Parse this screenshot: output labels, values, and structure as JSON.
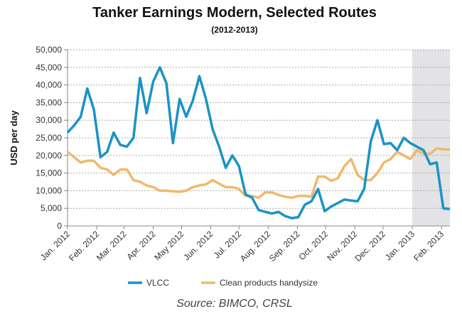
{
  "chart_data": {
    "type": "line",
    "title": "Tanker Earnings Modern, Selected Routes",
    "subtitle": "(2012-2013)",
    "y_label": "USD per day",
    "source": "Source: BIMCO, CRSL",
    "x": [
      0,
      1,
      2,
      3,
      4,
      5,
      6,
      7,
      8,
      9,
      10,
      11,
      12,
      13,
      14,
      15,
      16,
      17,
      18,
      19,
      20,
      21,
      22,
      23,
      24,
      25,
      26,
      27,
      28,
      29,
      30,
      31,
      32,
      33,
      34,
      35,
      36,
      37,
      38,
      39,
      40,
      41,
      42,
      43,
      44,
      45,
      46,
      47,
      48,
      49,
      50,
      51,
      52,
      53,
      54,
      55,
      56,
      57,
      58
    ],
    "xlim": [
      0,
      58
    ],
    "xticks": [
      {
        "value": 0,
        "label": "Jan. 2012"
      },
      {
        "value": 4.43,
        "label": "Feb. 2012"
      },
      {
        "value": 8.57,
        "label": "Mar. 2012"
      },
      {
        "value": 13,
        "label": "Apr. 2012"
      },
      {
        "value": 17.29,
        "label": "May 2012"
      },
      {
        "value": 21.71,
        "label": "Jun. 2012"
      },
      {
        "value": 26,
        "label": "Jul. 2012"
      },
      {
        "value": 30.43,
        "label": "Aug. 2012"
      },
      {
        "value": 34.86,
        "label": "Sep. 2012"
      },
      {
        "value": 39.14,
        "label": "Oct. 2012"
      },
      {
        "value": 43.57,
        "label": "Nov. 2012"
      },
      {
        "value": 47.86,
        "label": "Dec. 2012"
      },
      {
        "value": 52.29,
        "label": "Jan. 2013"
      },
      {
        "value": 56.71,
        "label": "Feb. 2013"
      }
    ],
    "highlight_xrange": [
      52.29,
      58
    ],
    "ylim": [
      0,
      50000
    ],
    "yticks": [
      0,
      {
        "value": 5000,
        "label": "5,000"
      },
      {
        "value": 10000,
        "label": "10,000"
      },
      {
        "value": 15000,
        "label": "15,000"
      },
      {
        "value": 20000,
        "label": "20,000"
      },
      {
        "value": 25000,
        "label": "25,000"
      },
      {
        "value": 30000,
        "label": "30,000"
      },
      {
        "value": 35000,
        "label": "35,000"
      },
      {
        "value": 40000,
        "label": "40,000"
      },
      {
        "value": 45000,
        "label": "45,000"
      },
      {
        "value": 50000,
        "label": "50,000"
      }
    ],
    "grid": true,
    "legend": "bottom",
    "series": [
      {
        "name": "VLCC",
        "color": "#1a93c4",
        "values": [
          26500,
          28500,
          31000,
          39000,
          33000,
          19500,
          21000,
          26500,
          23000,
          22500,
          25000,
          42000,
          32000,
          41000,
          45000,
          40500,
          23500,
          36000,
          31000,
          35500,
          42500,
          36000,
          27500,
          22500,
          16500,
          20000,
          17000,
          9000,
          8000,
          4500,
          4000,
          3500,
          4000,
          2800,
          2200,
          2500,
          6000,
          7000,
          10500,
          4200,
          5500,
          6500,
          7500,
          7200,
          7000,
          10500,
          24000,
          30000,
          23200,
          23500,
          21500,
          25000,
          23500,
          22500,
          21500,
          17500,
          18000,
          5000,
          4800
        ]
      },
      {
        "name": "Clean products handysize",
        "color": "#f0b96b",
        "values": [
          21000,
          19500,
          18000,
          18500,
          18500,
          16500,
          16000,
          14500,
          16000,
          16000,
          13000,
          12500,
          11500,
          11000,
          10000,
          10000,
          9800,
          9700,
          10000,
          11000,
          11500,
          11800,
          13000,
          12000,
          11000,
          11000,
          10500,
          8500,
          8500,
          8000,
          9500,
          9500,
          8800,
          8300,
          8000,
          8500,
          8500,
          8300,
          14000,
          14000,
          12800,
          13500,
          17000,
          19000,
          14500,
          13000,
          13000,
          15000,
          18000,
          19000,
          21000,
          20000,
          19000,
          21500,
          20500,
          20500,
          22000,
          21700,
          21700
        ]
      }
    ]
  }
}
